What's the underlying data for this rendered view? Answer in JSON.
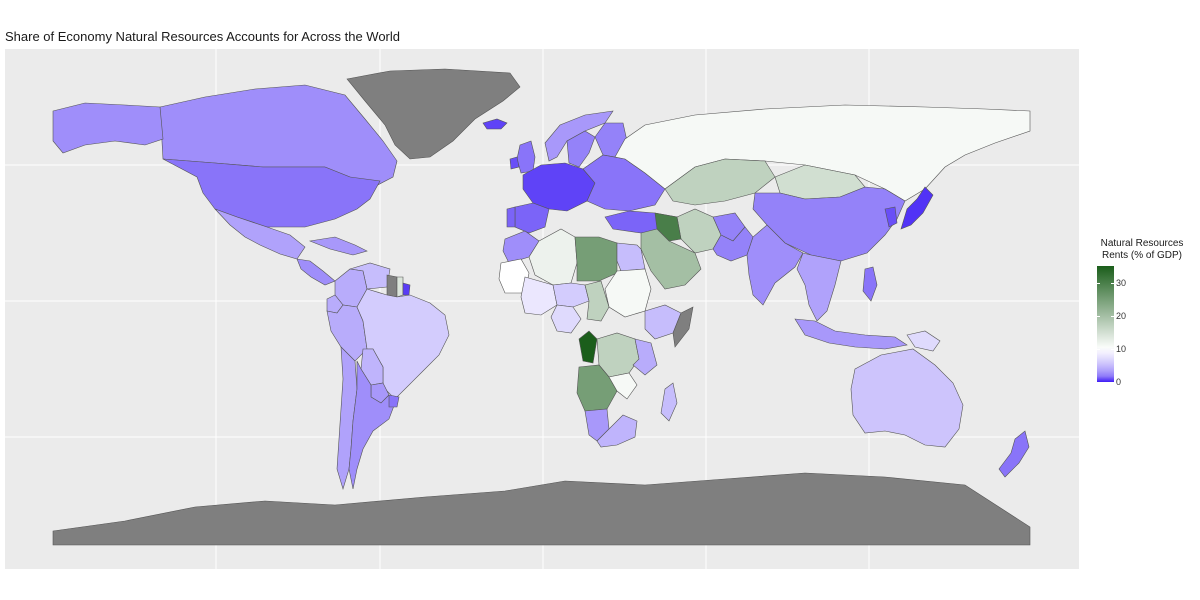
{
  "title": "Share of Economy Natural Resources Accounts for Across the World",
  "legend": {
    "title_line1": "Natural Resources",
    "title_line2": "Rents (% of GDP)",
    "ticks": [
      {
        "label": "30",
        "value": 30
      },
      {
        "label": "20",
        "value": 20
      },
      {
        "label": "10",
        "value": 10
      },
      {
        "label": "0",
        "value": 0
      }
    ],
    "scale": {
      "min": 0,
      "max": 35,
      "low_color": "#3e1cf5",
      "mid_color": "#ffffff",
      "high_color": "#1b5e1b",
      "mid_value": 10
    },
    "na_color": "#7f7f7f"
  },
  "chart_data": {
    "type": "choropleth",
    "value_name": "Natural Resources Rents (% of GDP)",
    "regions": [
      {
        "name": "Greenland",
        "value": null
      },
      {
        "name": "Antarctica",
        "value": null
      },
      {
        "name": "Iceland",
        "value": 0.3
      },
      {
        "name": "Canada",
        "value": 2.5
      },
      {
        "name": "Alaska",
        "value": 2.5
      },
      {
        "name": "United States",
        "value": 1.5
      },
      {
        "name": "Mexico",
        "value": 3.5
      },
      {
        "name": "Central America",
        "value": 2.5
      },
      {
        "name": "Caribbean",
        "value": 3
      },
      {
        "name": "Venezuela",
        "value": 5
      },
      {
        "name": "Guyana",
        "value": null
      },
      {
        "name": "Suriname",
        "value": 14
      },
      {
        "name": "French Guiana",
        "value": 0.2
      },
      {
        "name": "Colombia",
        "value": 4
      },
      {
        "name": "Ecuador",
        "value": 4
      },
      {
        "name": "Peru",
        "value": 4
      },
      {
        "name": "Brazil",
        "value": 6
      },
      {
        "name": "Bolivia",
        "value": 4.5
      },
      {
        "name": "Paraguay",
        "value": 3
      },
      {
        "name": "Chile",
        "value": 3.5
      },
      {
        "name": "Argentina",
        "value": 2.5
      },
      {
        "name": "Uruguay",
        "value": 1.5
      },
      {
        "name": "United Kingdom",
        "value": 1.5
      },
      {
        "name": "Ireland",
        "value": 0.5
      },
      {
        "name": "Norway",
        "value": 3
      },
      {
        "name": "Sweden",
        "value": 2
      },
      {
        "name": "Finland",
        "value": 2
      },
      {
        "name": "Western Europe",
        "value": 0.3
      },
      {
        "name": "Spain",
        "value": 1
      },
      {
        "name": "Portugal",
        "value": 1
      },
      {
        "name": "Eastern Europe",
        "value": 1.5
      },
      {
        "name": "Russia",
        "value": 11
      },
      {
        "name": "Kazakhstan",
        "value": 17
      },
      {
        "name": "Mongolia",
        "value": 15
      },
      {
        "name": "China",
        "value": 2
      },
      {
        "name": "Japan",
        "value": 0.1
      },
      {
        "name": "Korea",
        "value": 0.5
      },
      {
        "name": "Turkey",
        "value": 1
      },
      {
        "name": "Iran",
        "value": 17
      },
      {
        "name": "Iraq",
        "value": 30
      },
      {
        "name": "Saudi Arabia",
        "value": 20
      },
      {
        "name": "Afghanistan",
        "value": 2
      },
      {
        "name": "Pakistan",
        "value": 2
      },
      {
        "name": "India",
        "value": 2.5
      },
      {
        "name": "Southeast Asia",
        "value": 3.5
      },
      {
        "name": "Philippines",
        "value": 1.5
      },
      {
        "name": "Indonesia",
        "value": 3
      },
      {
        "name": "Papua New Guinea",
        "value": 7
      },
      {
        "name": "Australia",
        "value": 5.5
      },
      {
        "name": "New Zealand",
        "value": 1.5
      },
      {
        "name": "Morocco",
        "value": 2.5
      },
      {
        "name": "Algeria",
        "value": 12
      },
      {
        "name": "Libya",
        "value": 25
      },
      {
        "name": "Egypt",
        "value": 5
      },
      {
        "name": "Sudan",
        "value": 11
      },
      {
        "name": "Mauritania",
        "value": 10
      },
      {
        "name": "Mali",
        "value": 8
      },
      {
        "name": "Niger",
        "value": 6
      },
      {
        "name": "Chad",
        "value": 17
      },
      {
        "name": "Nigeria",
        "value": 7
      },
      {
        "name": "Ethiopia",
        "value": 5
      },
      {
        "name": "Somalia",
        "value": null
      },
      {
        "name": "Congo",
        "value": 35
      },
      {
        "name": "DR Congo",
        "value": 17
      },
      {
        "name": "Angola",
        "value": 25
      },
      {
        "name": "Zambia",
        "value": 11
      },
      {
        "name": "Tanzania",
        "value": 4
      },
      {
        "name": "Namibia",
        "value": 3
      },
      {
        "name": "South Africa",
        "value": 4.5
      },
      {
        "name": "Madagascar",
        "value": 5
      }
    ]
  }
}
